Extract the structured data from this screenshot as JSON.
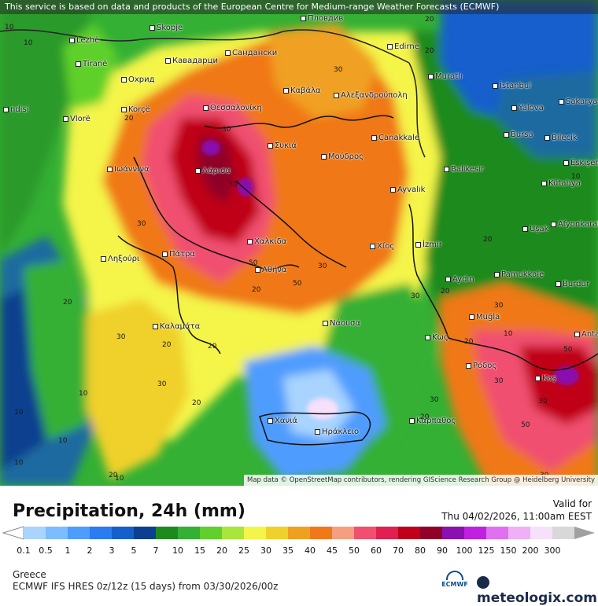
{
  "notice": "This service is based on data and products of the European Centre for Medium-range Weather Forecasts (ECMWF)",
  "map_credit": "Map data © OpenStreetMap contributors, rendering GIScience Research Group @ Heidelberg University",
  "title": "Precipitation, 24h (mm)",
  "valid_label": "Valid for",
  "valid_time": "Thu 04/02/2026, 11:00am EEST",
  "region": "Greece",
  "model_info": "ECMWF IFS HRES 0z/12z (15 days) from 03/30/2026/00z",
  "logo_text": "meteologix.com",
  "ecmwf_label": "ECMWF",
  "scale": {
    "ticks": [
      "0.1",
      "0.5",
      "1",
      "2",
      "3",
      "5",
      "7",
      "10",
      "15",
      "20",
      "25",
      "30",
      "35",
      "40",
      "45",
      "50",
      "60",
      "70",
      "80",
      "90",
      "100",
      "125",
      "150",
      "200",
      "300"
    ],
    "colors": [
      "#a8d4ff",
      "#7cbcff",
      "#4f9cff",
      "#2a7cf0",
      "#155fcc",
      "#0b3f8f",
      "#1e8a1e",
      "#34b034",
      "#5fd02c",
      "#a7e63a",
      "#f4f44a",
      "#f0d02a",
      "#f0a020",
      "#f07818",
      "#f4a080",
      "#f05070",
      "#e02050",
      "#c00018",
      "#900028",
      "#8a10b0",
      "#c020e0",
      "#e070f0",
      "#f0b0f8",
      "#f6e0fa",
      "#d8d8d8"
    ]
  },
  "cities": [
    {
      "name": "Lezhë"
    },
    {
      "name": "Tiranë"
    },
    {
      "name": "Vlorë"
    },
    {
      "name": "Skopje"
    },
    {
      "name": "Кавадарци"
    },
    {
      "name": "Охрид"
    },
    {
      "name": "Korçë"
    },
    {
      "name": "Сандански"
    },
    {
      "name": "Пловдив"
    },
    {
      "name": "Edirne"
    },
    {
      "name": "Muratlı"
    },
    {
      "name": "İstanbul"
    },
    {
      "name": "Yalova"
    },
    {
      "name": "Sakarya"
    },
    {
      "name": "Bursa"
    },
    {
      "name": "Bilecik"
    },
    {
      "name": "Eskişehir"
    },
    {
      "name": "Kütahya"
    },
    {
      "name": "Balıkesir"
    },
    {
      "name": "Θεσσαλονίκη"
    },
    {
      "name": "Καβάλα"
    },
    {
      "name": "Αλεξανδρούπολη"
    },
    {
      "name": "Çanakkale"
    },
    {
      "name": "Συκιά"
    },
    {
      "name": "Μούδρος"
    },
    {
      "name": "Ιωάννινα"
    },
    {
      "name": "Λάρισα"
    },
    {
      "name": "Ayvalık"
    },
    {
      "name": "Uşak"
    },
    {
      "name": "Afyonkarahisar"
    },
    {
      "name": "Χαλκίδα"
    },
    {
      "name": "Χίος"
    },
    {
      "name": "İzmir"
    },
    {
      "name": "Πάτρα"
    },
    {
      "name": "Ληξούρι"
    },
    {
      "name": "Αθήνα"
    },
    {
      "name": "Aydın"
    },
    {
      "name": "Pamukkale"
    },
    {
      "name": "Burdur"
    },
    {
      "name": "Καλαμάτα"
    },
    {
      "name": "Νάουσα"
    },
    {
      "name": "Muğla"
    },
    {
      "name": "Κως"
    },
    {
      "name": "Antalya"
    },
    {
      "name": "Ρόδος"
    },
    {
      "name": "Kaş"
    },
    {
      "name": "Χανιά"
    },
    {
      "name": "Ηράκλειο"
    },
    {
      "name": "Κάρπαθος"
    },
    {
      "name": "ndisi"
    }
  ],
  "contours": [
    "10",
    "20",
    "30",
    "50",
    "20",
    "30",
    "50",
    "30",
    "20",
    "10",
    "30",
    "20",
    "10",
    "20",
    "30",
    "50",
    "20",
    "30",
    "10",
    "20",
    "30",
    "50",
    "10",
    "20",
    "30",
    "20",
    "10",
    "30",
    "20",
    "30",
    "10",
    "20",
    "10",
    "20",
    "10",
    "30",
    "50",
    "30",
    "20"
  ]
}
